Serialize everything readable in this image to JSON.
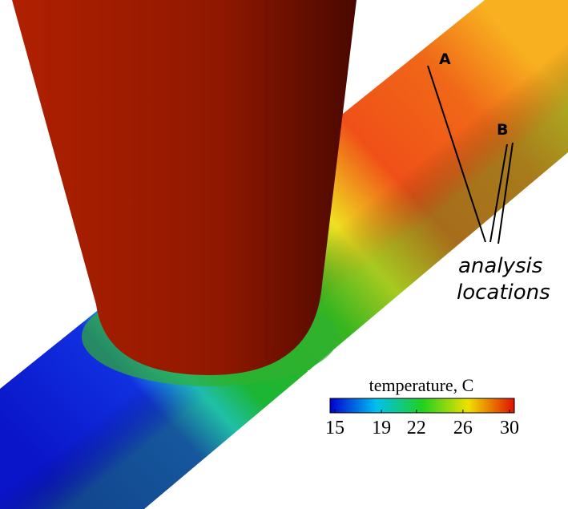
{
  "labels": {
    "point_a": "A",
    "point_b": "B",
    "annotation": [
      "analysis",
      "locations"
    ]
  },
  "colorbar": {
    "title": "temperature, C",
    "range": [
      15,
      30
    ],
    "ticks": [
      15,
      19,
      22,
      26,
      30
    ]
  }
}
